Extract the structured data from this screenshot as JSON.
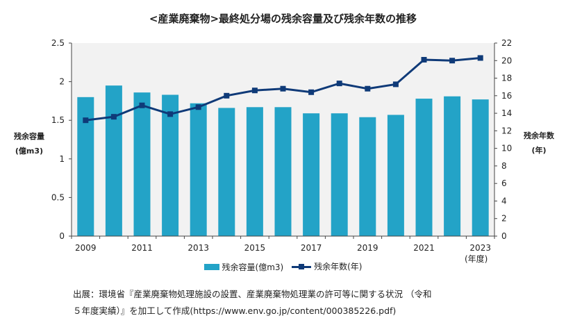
{
  "chart_data": {
    "type": "bar+line",
    "title": "<産業廃棄物>最終処分場の残余容量及び残余年数の推移",
    "categories": [
      "2009",
      "2010",
      "2011",
      "2012",
      "2013",
      "2014",
      "2015",
      "2016",
      "2017",
      "2018",
      "2019",
      "2020",
      "2021",
      "2022",
      "2023"
    ],
    "x_tick_labels": [
      "2009",
      "2011",
      "2013",
      "2015",
      "2017",
      "2019",
      "2021",
      "2023"
    ],
    "x_unit_label": "(年度)",
    "series": [
      {
        "name": "残余容量(億m3)",
        "type": "bar",
        "axis": "left",
        "values": [
          1.8,
          1.95,
          1.86,
          1.83,
          1.72,
          1.66,
          1.67,
          1.67,
          1.59,
          1.59,
          1.54,
          1.57,
          1.78,
          1.81,
          1.77
        ]
      },
      {
        "name": "残余年数(年)",
        "type": "line",
        "axis": "right",
        "values": [
          13.2,
          13.6,
          14.9,
          13.9,
          14.7,
          16.0,
          16.6,
          16.8,
          16.4,
          17.4,
          16.8,
          17.3,
          20.1,
          20.0,
          20.3
        ]
      }
    ],
    "y_left": {
      "label_line1": "残余容量",
      "label_line2": "(億m3)",
      "ylim": [
        0,
        2.5
      ],
      "ticks": [
        "0",
        "0.5",
        "1",
        "1.5",
        "2",
        "2.5"
      ]
    },
    "y_right": {
      "label_line1": "残余年数",
      "label_line2": "(年)",
      "ylim": [
        0,
        22
      ],
      "ticks": [
        "0",
        "2",
        "4",
        "6",
        "8",
        "10",
        "12",
        "14",
        "16",
        "18",
        "20",
        "22"
      ]
    },
    "grid": false,
    "legend_position": "bottom",
    "colors": {
      "bar": "#23A3C7",
      "line": "#0F3A78",
      "plot_background": "#F2F2F2"
    }
  },
  "source": {
    "line1": "出展：環境省『産業廃棄物処理施設の設置、産業廃棄物処理業の許可等に関する状況 （令和",
    "line2": "５年度実績）』を加工して作成(https://www.env.go.jp/content/000385226.pdf)"
  }
}
